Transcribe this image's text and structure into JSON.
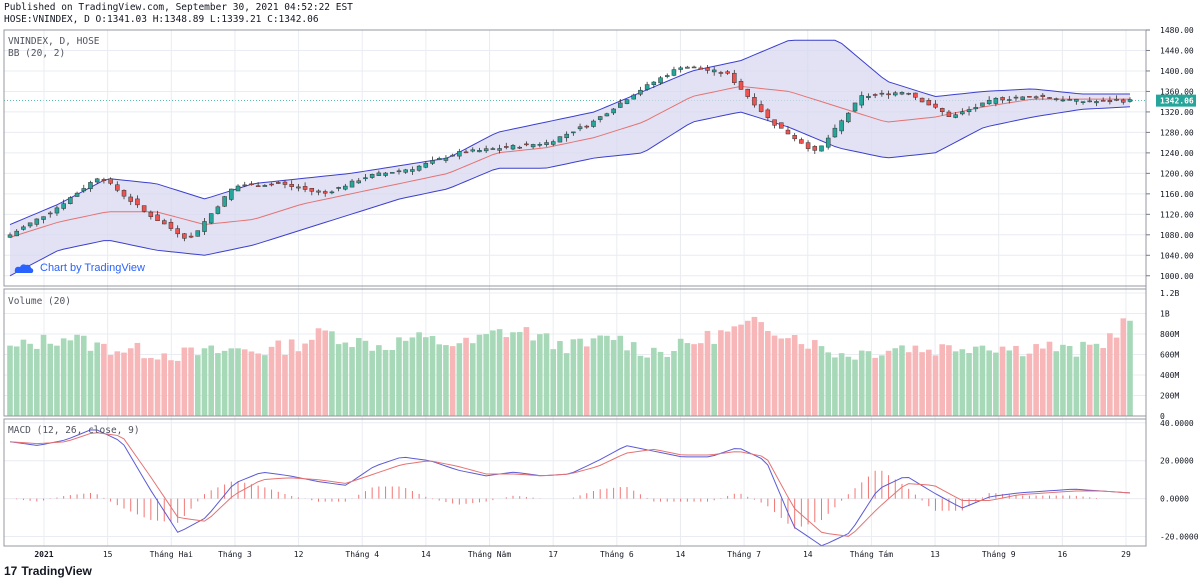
{
  "header": {
    "published": "Published on TradingView.com, September 30, 2021 04:52:22 EST",
    "ohlc": "HOSE:VNINDEX, D O:1341.03 H:1348.89 L:1339.21 C:1342.06"
  },
  "watermark": {
    "text": "Chart by TradingView"
  },
  "footer": {
    "brand": "TradingView",
    "brand_mark": "17"
  },
  "colors": {
    "up_candle": "#26a69a",
    "up_candle_light": "#a7d9b8",
    "down_candle": "#ef5350",
    "down_candle_light": "#f7b6b8",
    "bb_line": "#3b3fce",
    "bb_fill": "#d8d8f0",
    "basis": "#e57373",
    "macd_line": "#5b5bd6",
    "signal_line": "#e57373",
    "grid": "#e9ecf2",
    "price_label_bg": "#26a69a"
  },
  "chart_data": [
    {
      "type": "candlestick",
      "title": "VNINDEX, D, HOSE",
      "indicator_label": "BB (20, 2)",
      "ylim": [
        980,
        1480
      ],
      "y_ticks": [
        "1000.00",
        "1040.00",
        "1080.00",
        "1120.00",
        "1160.00",
        "1200.00",
        "1240.00",
        "1280.00",
        "1320.00",
        "1360.00",
        "1400.00",
        "1440.00",
        "1480.00"
      ],
      "last_price": "1342.06",
      "x_tick_labels": [
        "2021",
        "15",
        "Tháng Hai",
        "Tháng 3",
        "12",
        "Tháng 4",
        "14",
        "Tháng Năm",
        "17",
        "Tháng 6",
        "14",
        "Tháng 7",
        "14",
        "Tháng Tám",
        "13",
        "Tháng 9",
        "16",
        "29"
      ],
      "bands_anchor": {
        "upper": [
          1100,
          1140,
          1190,
          1180,
          1150,
          1180,
          1190,
          1200,
          1215,
          1230,
          1280,
          1300,
          1320,
          1360,
          1400,
          1420,
          1460,
          1460,
          1380,
          1350,
          1360,
          1365,
          1355,
          1355
        ],
        "basis": [
          1075,
          1105,
          1125,
          1125,
          1100,
          1110,
          1140,
          1160,
          1180,
          1200,
          1240,
          1250,
          1270,
          1300,
          1350,
          1370,
          1360,
          1330,
          1300,
          1310,
          1330,
          1345,
          1345,
          1345
        ],
        "lower": [
          1000,
          1050,
          1070,
          1050,
          1040,
          1060,
          1090,
          1120,
          1150,
          1170,
          1210,
          1210,
          1230,
          1240,
          1300,
          1320,
          1290,
          1250,
          1230,
          1240,
          1290,
          1310,
          1325,
          1330
        ]
      },
      "close_anchor": [
        1080,
        1130,
        1195,
        1125,
        1070,
        1175,
        1180,
        1160,
        1195,
        1210,
        1240,
        1250,
        1260,
        1300,
        1360,
        1410,
        1395,
        1300,
        1240,
        1350,
        1360,
        1310,
        1345,
        1350,
        1340,
        1342
      ]
    },
    {
      "type": "bar",
      "title": "Volume (20)",
      "ylim": [
        0,
        1200000000
      ],
      "y_ticks": [
        "0",
        "200M",
        "400M",
        "600M",
        "800M",
        "1B",
        "1.2B"
      ],
      "values_anchor_millions": [
        650,
        720,
        780,
        680,
        650,
        620,
        600,
        620,
        650,
        640,
        700,
        820,
        730,
        680,
        760,
        720,
        700,
        820,
        820,
        700,
        680,
        780,
        640,
        640,
        740,
        820,
        900,
        820,
        700,
        600,
        630,
        680,
        650,
        680,
        700,
        650,
        690,
        620,
        700,
        960
      ]
    },
    {
      "type": "line",
      "title": "MACD (12, 26, close, 9)",
      "ylim": [
        -25,
        42
      ],
      "y_ticks": [
        "40.0000",
        "20.0000",
        "0.0000",
        "-20.0000"
      ],
      "series": [
        {
          "name": "MACD",
          "values": [
            30,
            28,
            31,
            37,
            30,
            5,
            -18,
            -10,
            8,
            14,
            12,
            9,
            7,
            17,
            22,
            20,
            15,
            12,
            14,
            12,
            13,
            20,
            28,
            25,
            22,
            22,
            27,
            20,
            -15,
            -25,
            -18,
            5,
            12,
            3,
            -5,
            1,
            3,
            4,
            5,
            4,
            3
          ]
        },
        {
          "name": "Signal",
          "values": [
            30,
            29,
            30,
            35,
            33,
            12,
            -10,
            -12,
            2,
            10,
            11,
            10,
            8,
            13,
            18,
            20,
            17,
            13,
            13,
            12,
            13,
            17,
            24,
            26,
            23,
            23,
            25,
            22,
            -5,
            -18,
            -20,
            -5,
            8,
            7,
            -1,
            -1,
            2,
            3,
            4,
            4,
            3
          ]
        }
      ]
    }
  ]
}
